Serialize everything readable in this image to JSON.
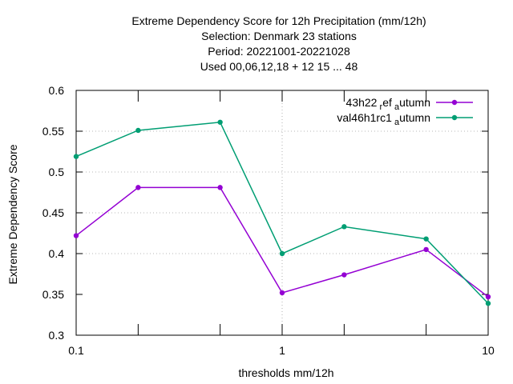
{
  "chart_data": {
    "type": "line",
    "title_lines": [
      "Extreme Dependency Score  for 12h Precipitation (mm/12h)",
      "Selection: Denmark     23 stations",
      "Period: 20221001-20221028",
      "Used  00,06,12,18  + 12 15 ... 48"
    ],
    "xlabel": "thresholds mm/12h",
    "ylabel": "Extreme Dependency Score",
    "x_scale": "log",
    "xlim": [
      0.1,
      10
    ],
    "ylim": [
      0.3,
      0.6
    ],
    "x_ticks": [
      {
        "value": 0.1,
        "label": "0.1"
      },
      {
        "value": 1,
        "label": "1"
      },
      {
        "value": 10,
        "label": "10"
      }
    ],
    "x_minor_ticks": [
      0.2,
      0.5,
      2,
      5
    ],
    "y_ticks": [
      {
        "value": 0.3,
        "label": "0.3"
      },
      {
        "value": 0.35,
        "label": "0.35"
      },
      {
        "value": 0.4,
        "label": "0.4"
      },
      {
        "value": 0.45,
        "label": "0.45"
      },
      {
        "value": 0.5,
        "label": "0.5"
      },
      {
        "value": 0.55,
        "label": "0.55"
      },
      {
        "value": 0.6,
        "label": "0.6"
      }
    ],
    "grid": {
      "x_at": [
        1
      ],
      "y_at": [
        0.4,
        0.45,
        0.5,
        0.55,
        0.6
      ],
      "style": "dotted"
    },
    "legend_position": "top-right",
    "x": [
      0.1,
      0.2,
      0.5,
      1,
      2,
      5,
      10
    ],
    "series": [
      {
        "name_main": "43h22",
        "name_sub": "r",
        "name_mid": "ef",
        "name_sub2": "a",
        "name_tail": "utumn",
        "color": "#9400d3",
        "values": [
          0.422,
          0.481,
          0.481,
          0.352,
          0.374,
          0.405,
          0.347
        ]
      },
      {
        "name_main": "val46h1rc1",
        "name_sub": "a",
        "name_tail": "utumn",
        "color": "#009e73",
        "values": [
          0.519,
          0.551,
          0.561,
          0.4,
          0.433,
          0.418,
          0.339
        ]
      }
    ]
  }
}
